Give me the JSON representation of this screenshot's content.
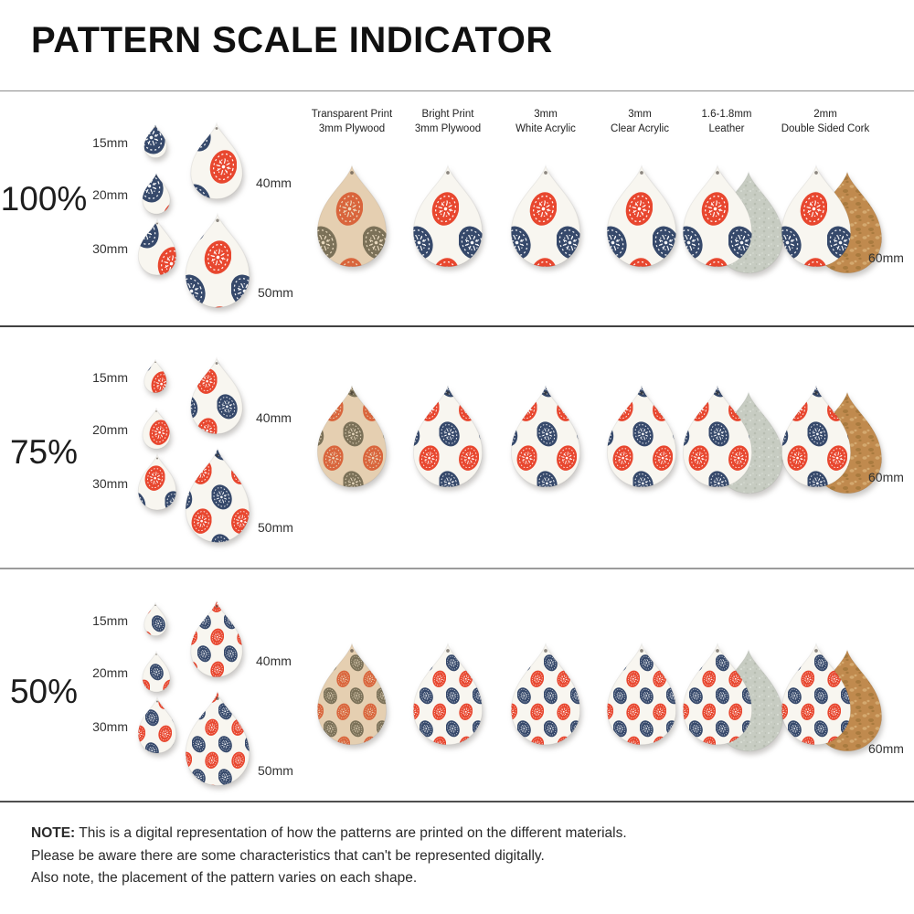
{
  "title": "PATTERN SCALE INDICATOR",
  "large_size_label": "60mm",
  "size_labels": [
    "15mm",
    "20mm",
    "30mm",
    "40mm",
    "50mm"
  ],
  "rows": [
    {
      "scale_label": "100%",
      "pattern_scale": 1.0
    },
    {
      "scale_label": "75%",
      "pattern_scale": 0.75
    },
    {
      "scale_label": "50%",
      "pattern_scale": 0.5
    }
  ],
  "materials": [
    {
      "name": "transparent-print-plywood",
      "header_line1": "Transparent Print",
      "header_line2": "3mm Plywood",
      "style": "wood",
      "backing": "none"
    },
    {
      "name": "bright-print-plywood",
      "header_line1": "Bright Print",
      "header_line2": "3mm Plywood",
      "style": "bright",
      "backing": "none"
    },
    {
      "name": "white-acrylic",
      "header_line1": "3mm",
      "header_line2": "White Acrylic",
      "style": "bright",
      "backing": "none"
    },
    {
      "name": "clear-acrylic",
      "header_line1": "3mm",
      "header_line2": "Clear Acrylic",
      "style": "bright",
      "backing": "none"
    },
    {
      "name": "leather",
      "header_line1": "1.6-1.8mm",
      "header_line2": "Leather",
      "style": "bright",
      "backing": "suede"
    },
    {
      "name": "double-sided-cork",
      "header_line1": "2mm",
      "header_line2": "Double Sided Cork",
      "style": "bright",
      "backing": "cork"
    }
  ],
  "pattern": {
    "description": "red and navy folk-art eggs with white dotted starburst decorations on white ground",
    "shape": "teardrop with top hanging hole"
  },
  "colors": {
    "red": "#e8472f",
    "navy": "#36496b",
    "pattern_bg": "#f8f6f0",
    "deco_bright": "rgba(255,255,255,0.95)",
    "wood_bg": "#e5cfb1",
    "wood_grey": "#7b7158",
    "wood_orange": "#d9653c",
    "deco_wood": "rgba(237,221,195,0.95)",
    "suede": "#c7ccc2",
    "suede_light": "#d8ddd4",
    "suede_dark": "#b7bdb1",
    "cork": "#c08a4e",
    "cork_light": "#d4a96f",
    "cork_dark": "#a87a3e"
  },
  "note": {
    "label": "NOTE:",
    "line1": " This is a digital representation of how the patterns are printed on the different materials.",
    "line2": "Please be aware there are some characteristics that can't be represented digitally.",
    "line3": "Also note, the placement of the pattern varies on each shape."
  }
}
